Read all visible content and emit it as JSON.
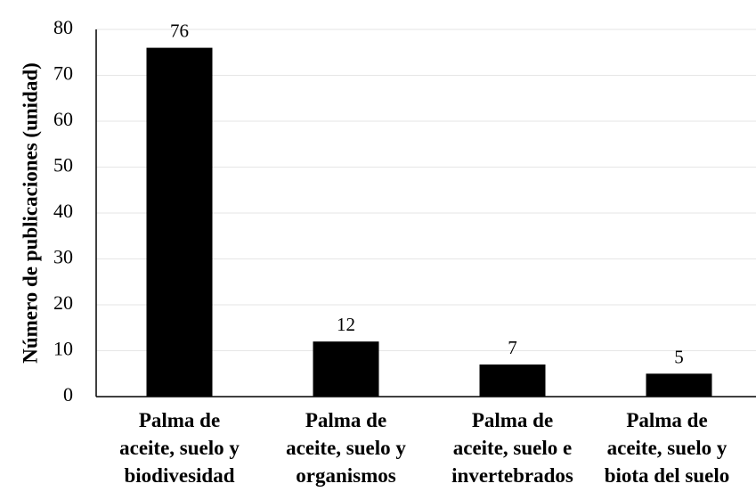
{
  "chart_data": {
    "type": "bar",
    "y_label": "Número de publicaciones (unidad)",
    "categories": [
      "Palma de\naceite, suelo y\nbiodivesidad",
      "Palma de\naceite, suelo y\norganismos",
      "Palma de\naceite, suelo e\ninvertebrados",
      "Palma de\naceite, suelo y\nbiota del suelo"
    ],
    "values": [
      76,
      12,
      7,
      5
    ],
    "color": "#000000",
    "ylim": [
      0,
      80
    ],
    "yticks": [
      0,
      10,
      20,
      30,
      40,
      50,
      60,
      70,
      80
    ],
    "grid": true
  }
}
